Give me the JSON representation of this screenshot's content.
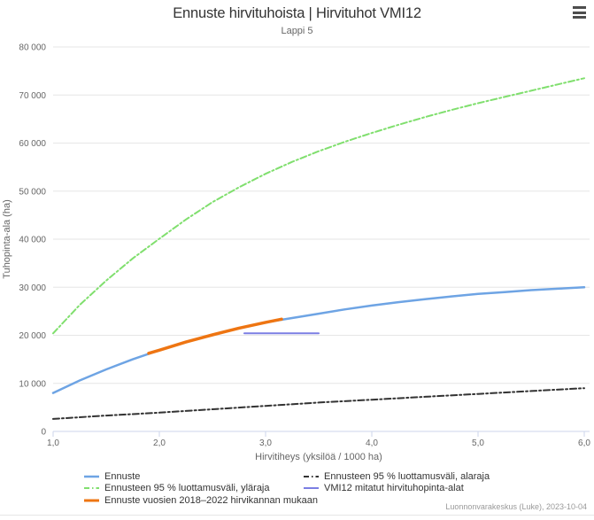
{
  "header": {
    "title": "Ennuste hirvituhoista | Hirvituhot VMI12",
    "subtitle": "Lappi 5"
  },
  "export_menu": {
    "icon": "hamburger-icon"
  },
  "credits": "Luonnonvarakeskus (Luke), 2023-10-04",
  "chart_data": {
    "type": "line",
    "title": "Ennuste hirvituhoista | Hirvituhot VMI12",
    "subtitle": "Lappi 5",
    "xlabel": "Hirvitiheys (yksilöä / 1000 ha)",
    "ylabel": "Tuhopinta-ala (ha)",
    "xlim": [
      1.0,
      6.0
    ],
    "ylim": [
      0,
      80000
    ],
    "x_ticks": [
      1.0,
      2.0,
      3.0,
      4.0,
      5.0,
      6.0
    ],
    "x_tick_labels": [
      "1,0",
      "2,0",
      "3,0",
      "4,0",
      "5,0",
      "6,0"
    ],
    "y_ticks": [
      0,
      10000,
      20000,
      30000,
      40000,
      50000,
      60000,
      70000,
      80000
    ],
    "y_tick_labels": [
      "0",
      "10 000",
      "20 000",
      "30 000",
      "40 000",
      "50 000",
      "60 000",
      "70 000",
      "80 000"
    ],
    "grid": "horizontal",
    "legend_position": "bottom",
    "colors": {
      "grid": "#e6e6e6",
      "axis_line": "#ccd6eb",
      "title": "#333333",
      "subtitle": "#666666",
      "labels": "#666666",
      "credits": "#999999"
    },
    "series": [
      {
        "name": "Ennuste",
        "color": "#6ea4e4",
        "dash": "solid",
        "width": 2.5,
        "points": [
          [
            1.0,
            8000
          ],
          [
            1.25,
            10600
          ],
          [
            1.5,
            12900
          ],
          [
            1.75,
            15000
          ],
          [
            2.0,
            16900
          ],
          [
            2.25,
            18600
          ],
          [
            2.5,
            20100
          ],
          [
            2.75,
            21500
          ],
          [
            3.0,
            22700
          ],
          [
            3.25,
            23600
          ],
          [
            3.5,
            24500
          ],
          [
            3.75,
            25400
          ],
          [
            4.0,
            26200
          ],
          [
            4.25,
            26900
          ],
          [
            4.5,
            27500
          ],
          [
            4.75,
            28100
          ],
          [
            5.0,
            28600
          ],
          [
            5.25,
            29000
          ],
          [
            5.5,
            29400
          ],
          [
            5.75,
            29700
          ],
          [
            6.0,
            30000
          ]
        ]
      },
      {
        "name": "Ennusteen 95 % luottamusväli, yläraja",
        "color": "#80df6e",
        "dash": "dash-dot",
        "width": 2,
        "points": [
          [
            1.0,
            20400
          ],
          [
            1.25,
            26300
          ],
          [
            1.5,
            31400
          ],
          [
            1.75,
            36000
          ],
          [
            2.0,
            40100
          ],
          [
            2.25,
            44100
          ],
          [
            2.5,
            47700
          ],
          [
            2.75,
            50800
          ],
          [
            3.0,
            53600
          ],
          [
            3.25,
            56100
          ],
          [
            3.5,
            58300
          ],
          [
            3.75,
            60300
          ],
          [
            4.0,
            62100
          ],
          [
            4.25,
            63800
          ],
          [
            4.5,
            65400
          ],
          [
            4.75,
            66900
          ],
          [
            5.0,
            68300
          ],
          [
            5.25,
            69600
          ],
          [
            5.5,
            70900
          ],
          [
            5.75,
            72200
          ],
          [
            6.0,
            73500
          ]
        ]
      },
      {
        "name": "Ennuste vuosien 2018–2022 hirvikannan mukaan",
        "color": "#ee7512",
        "dash": "solid",
        "width": 3.5,
        "points": [
          [
            1.9,
            16250
          ],
          [
            2.0,
            16900
          ],
          [
            2.25,
            18600
          ],
          [
            2.5,
            20100
          ],
          [
            2.75,
            21500
          ],
          [
            3.0,
            22700
          ],
          [
            3.15,
            23350
          ]
        ]
      },
      {
        "name": "Ennusteen 95 % luottamusväli, alaraja",
        "color": "#333333",
        "dash": "dash-dot",
        "width": 2,
        "points": [
          [
            1.0,
            2600
          ],
          [
            1.5,
            3300
          ],
          [
            2.0,
            3900
          ],
          [
            2.5,
            4600
          ],
          [
            3.0,
            5300
          ],
          [
            3.5,
            6000
          ],
          [
            4.0,
            6600
          ],
          [
            4.5,
            7200
          ],
          [
            5.0,
            7800
          ],
          [
            5.5,
            8400
          ],
          [
            6.0,
            9000
          ]
        ]
      },
      {
        "name": "VMI12 mitatut hirvituhopinta-alat",
        "color": "#7b7ee3",
        "dash": "solid",
        "width": 2,
        "points": [
          [
            2.8,
            20400
          ],
          [
            3.5,
            20400
          ]
        ]
      }
    ],
    "legend_order": [
      0,
      3,
      1,
      4,
      2
    ]
  }
}
